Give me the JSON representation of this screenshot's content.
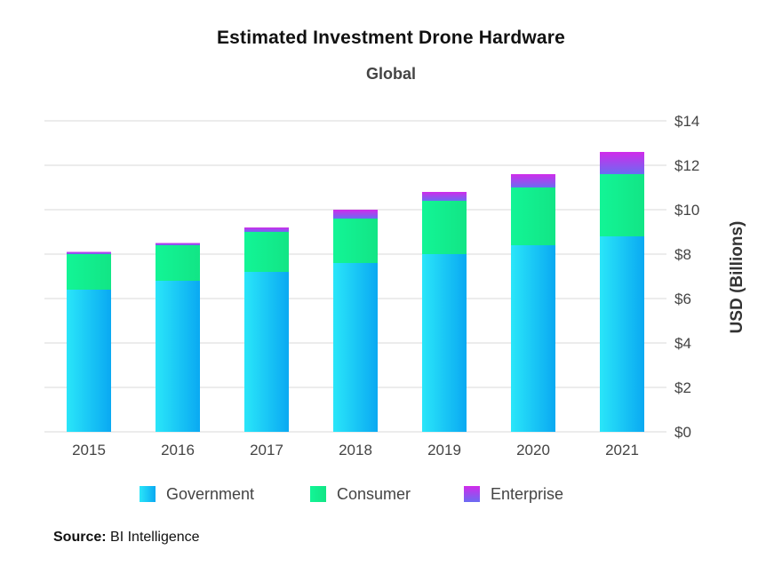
{
  "chart_data": {
    "type": "bar",
    "stacked": true,
    "title": "Estimated Investment Drone Hardware",
    "subtitle": "Global",
    "categories": [
      "2015",
      "2016",
      "2017",
      "2018",
      "2019",
      "2020",
      "2021"
    ],
    "series": [
      {
        "name": "Government",
        "color": "#12c8f4",
        "values": [
          6.4,
          6.8,
          7.2,
          7.6,
          8.0,
          8.4,
          8.8
        ]
      },
      {
        "name": "Consumer",
        "color": "#16f08e",
        "values": [
          1.6,
          1.6,
          1.8,
          2.0,
          2.4,
          2.6,
          2.8
        ]
      },
      {
        "name": "Enterprise",
        "color": "#b92ee8",
        "values": [
          0.1,
          0.1,
          0.2,
          0.4,
          0.4,
          0.6,
          1.0
        ]
      }
    ],
    "ylabel": "USD (Billions)",
    "ylim": [
      0,
      14
    ],
    "yticks": [
      0,
      2,
      4,
      6,
      8,
      10,
      12,
      14
    ],
    "ytick_labels": [
      "$0",
      "$2",
      "$4",
      "$6",
      "$8",
      "$10",
      "$12",
      "$14"
    ],
    "y_axis_side": "right",
    "grid": true,
    "legend_position": "bottom"
  },
  "source": {
    "label": "Source:",
    "text": "BI Intelligence"
  }
}
